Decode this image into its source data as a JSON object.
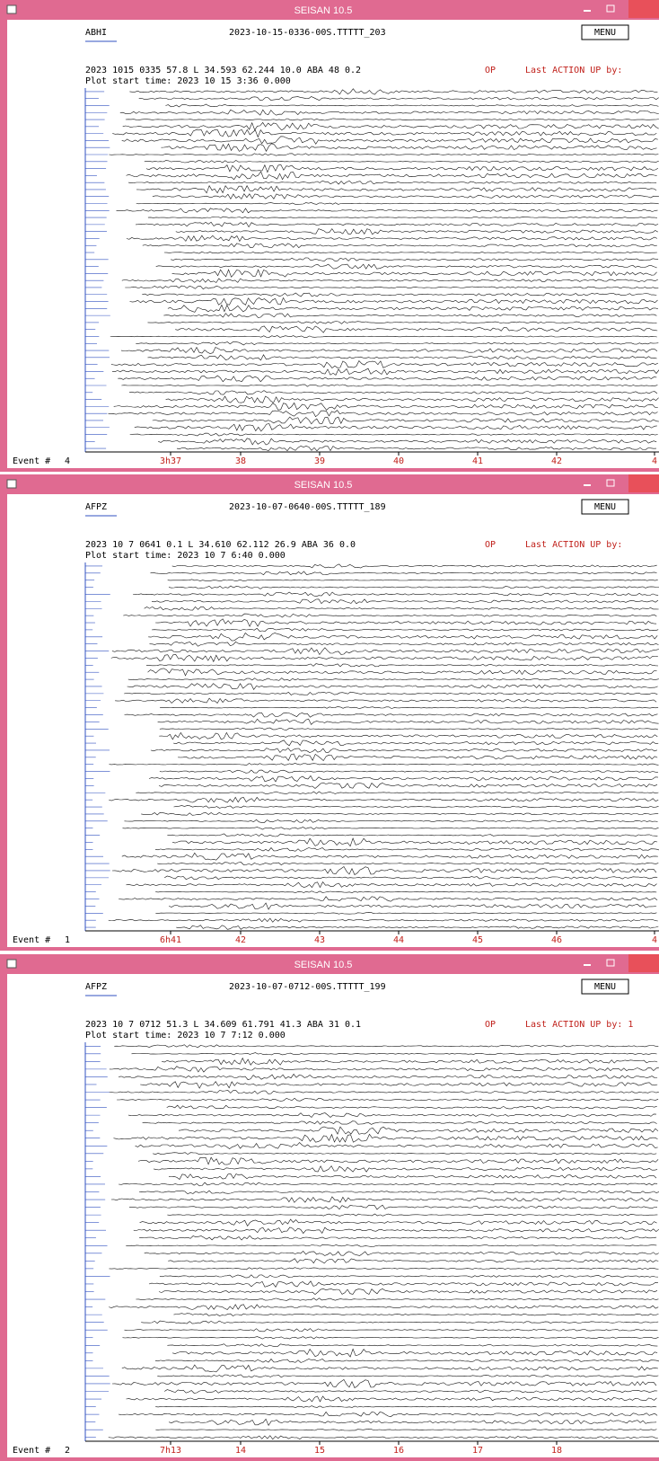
{
  "windows": [
    {
      "title": "SEISAN 10.5",
      "station": "ABHI",
      "filename": "2023-10-15-0336-00S.TTTTT_203",
      "menu": "MENU",
      "info": "2023 1015 0335 57.8 L  34.593  62.244 10.0  ABA 48 0.2",
      "op": "OP",
      "last_action": "Last ACTION UP by:",
      "plot_start": "Plot start time: 2023 10 15   3:36   0.000",
      "time_labels": [
        "3h37",
        "38",
        "39",
        "40",
        "41",
        "42",
        "4"
      ],
      "event_label": "Event #",
      "event_number": "4"
    },
    {
      "title": "SEISAN 10.5",
      "station": "AFPZ",
      "filename": "2023-10-07-0640-00S.TTTTT_189",
      "menu": "MENU",
      "info": "2023 10 7 0641  0.1 L  34.610  62.112 26.9  ABA 36 0.0",
      "op": "OP",
      "last_action": "Last ACTION UP by:",
      "plot_start": "Plot start time: 2023 10  7   6:40   0.000",
      "time_labels": [
        "6h41",
        "42",
        "43",
        "44",
        "45",
        "46",
        "4"
      ],
      "event_label": "Event #",
      "event_number": "1"
    },
    {
      "title": "SEISAN 10.5",
      "station": "AFPZ",
      "filename": "2023-10-07-0712-00S.TTTTT_199",
      "menu": "MENU",
      "info": "2023 10 7 0712 51.3 L  34.609  61.791 41.3  ABA 31 0.1",
      "op": "OP",
      "last_action": "Last ACTION UP by: 1",
      "plot_start": "Plot start time: 2023 10  7   7:12   0.000",
      "time_labels": [
        "7h13",
        "14",
        "15",
        "16",
        "17",
        "18"
      ],
      "event_label": "Event #",
      "event_number": "2"
    }
  ]
}
